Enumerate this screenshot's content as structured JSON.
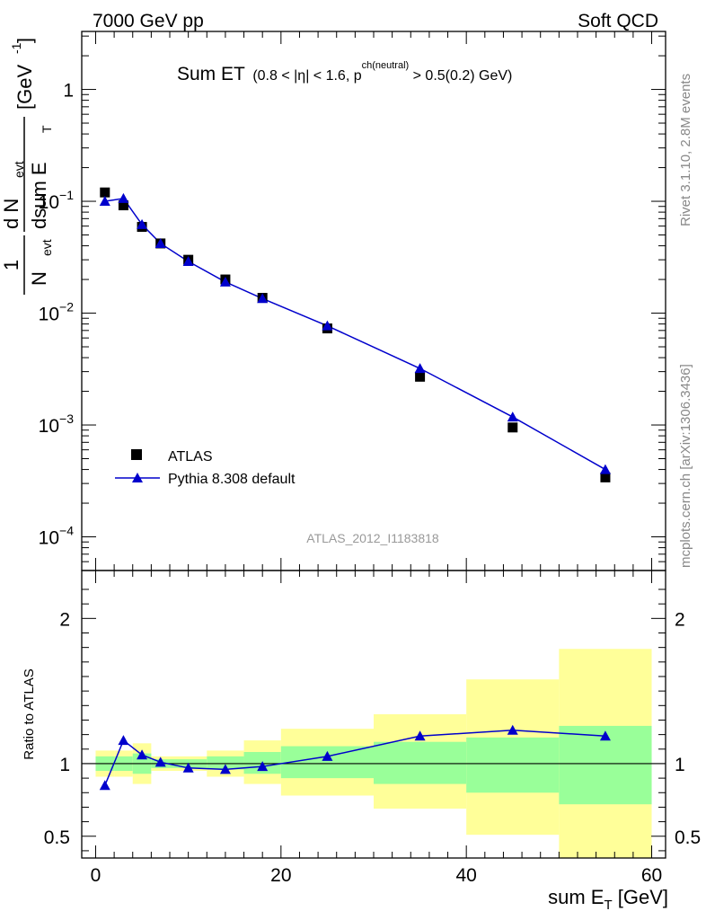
{
  "header": {
    "left": "7000 GeV pp",
    "right": "Soft QCD"
  },
  "side_labels": {
    "rivet": "Rivet 3.1.10,  2.8M events",
    "mcplots": "mcplots.cern.ch [arXiv:1306.3436]"
  },
  "analysis_id": "ATLAS_2012_I1183818",
  "colors": {
    "data": "#000000",
    "mc": "#0000cc",
    "band_inner": "#99ff99",
    "band_outer": "#ffff99"
  },
  "chart_data": [
    {
      "type": "scatter",
      "title_main": "Sum ET",
      "title_cut_a": "(0.8 < |",
      "title_eta": "η",
      "title_cut_b": "| < 1.6, p",
      "title_sup": "ch(neutral)",
      "title_cut_c": " > 0.5(0.2) GeV)",
      "ylabel_frac_num": "1",
      "ylabel_frac_den": "N",
      "ylabel_frac_den_sub": "evt",
      "ylabel_d_num": "d N",
      "ylabel_d_num_sub": "evt",
      "ylabel_d_den": "dsum E",
      "ylabel_d_den_sub": "T",
      "ylabel_unit": "[GeV",
      "ylabel_unit_sup": "-1",
      "ylabel_unit_close": "]",
      "yscale": "log",
      "ylim": [
        5e-05,
        3.3
      ],
      "xlim": [
        -1.5,
        61.5
      ],
      "y_ticks": [
        {
          "value": 1,
          "base": "1",
          "exp": ""
        },
        {
          "value": 0.1,
          "base": "10",
          "exp": "−1"
        },
        {
          "value": 0.01,
          "base": "10",
          "exp": "−2"
        },
        {
          "value": 0.001,
          "base": "10",
          "exp": "−3"
        },
        {
          "value": 0.0001,
          "base": "10",
          "exp": "−4"
        }
      ],
      "legend_position": "bottom-left",
      "series": [
        {
          "name": "ATLAS",
          "marker": "square",
          "x": [
            1,
            3,
            5,
            7,
            10,
            14,
            18,
            25,
            35,
            45,
            55
          ],
          "y": [
            0.12,
            0.092,
            0.059,
            0.042,
            0.03,
            0.02,
            0.0137,
            0.0073,
            0.0027,
            0.00095,
            0.00034
          ]
        },
        {
          "name": "Pythia 8.308 default",
          "marker": "triangle",
          "x": [
            1,
            3,
            5,
            7,
            10,
            14,
            18,
            25,
            35,
            45,
            55
          ],
          "y": [
            0.1,
            0.106,
            0.062,
            0.042,
            0.029,
            0.019,
            0.0135,
            0.0077,
            0.0032,
            0.00118,
            0.0004
          ]
        }
      ]
    },
    {
      "type": "line",
      "ylabel": "Ratio to ATLAS",
      "xlabel_main": "sum E",
      "xlabel_sub": "T",
      "xlabel_unit": " [GeV]",
      "ylim": [
        0.35,
        2.33
      ],
      "xlim": [
        -1.5,
        61.5
      ],
      "x_ticks": [
        0,
        20,
        40,
        60
      ],
      "y_ticks": [
        0.5,
        1,
        2
      ],
      "reference_line": 1,
      "bands": {
        "x_edges": [
          0,
          2,
          4,
          6,
          8,
          12,
          16,
          20,
          30,
          40,
          50,
          60
        ],
        "inner_low": [
          0.95,
          0.95,
          0.93,
          0.97,
          0.97,
          0.96,
          0.93,
          0.9,
          0.86,
          0.8,
          0.72
        ],
        "inner_high": [
          1.05,
          1.05,
          1.07,
          1.03,
          1.03,
          1.05,
          1.08,
          1.12,
          1.15,
          1.18,
          1.26
        ],
        "outer_low": [
          0.91,
          0.91,
          0.86,
          0.95,
          0.95,
          0.91,
          0.86,
          0.78,
          0.69,
          0.51,
          0.34
        ],
        "outer_high": [
          1.09,
          1.09,
          1.14,
          1.05,
          1.05,
          1.09,
          1.16,
          1.24,
          1.34,
          1.58,
          1.79
        ]
      },
      "series": [
        {
          "name": "Pythia 8.308 default",
          "x": [
            1,
            3,
            5,
            7,
            10,
            14,
            18,
            25,
            35,
            45,
            55
          ],
          "y": [
            0.85,
            1.16,
            1.06,
            1.01,
            0.97,
            0.96,
            0.98,
            1.05,
            1.19,
            1.23,
            1.19
          ]
        }
      ]
    }
  ]
}
